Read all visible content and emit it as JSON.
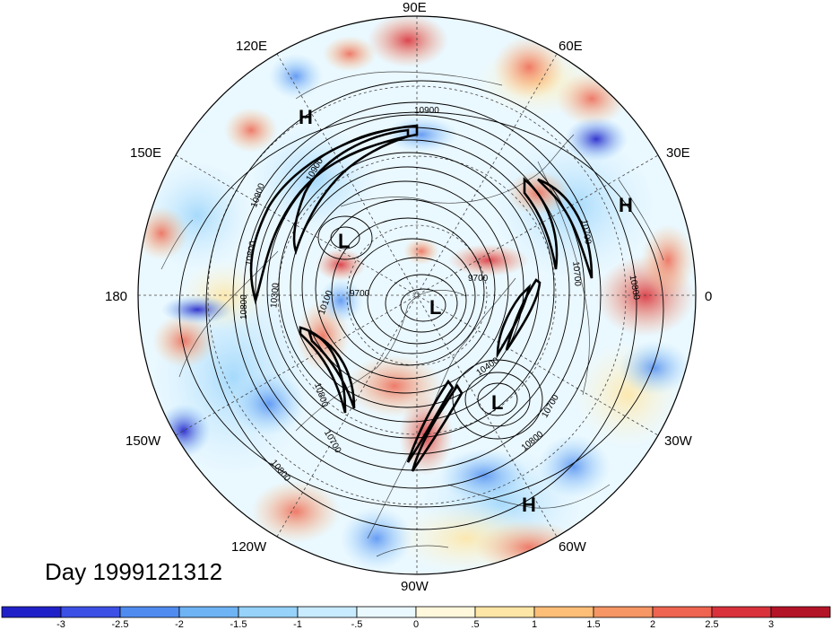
{
  "title": "Day 1999121312",
  "longitude_labels": [
    "90E",
    "60E",
    "30E",
    "0",
    "30W",
    "60W",
    "90W",
    "120W",
    "150W",
    "180",
    "150E",
    "120E"
  ],
  "pressure_systems": [
    {
      "label": "H",
      "region": "east-asia"
    },
    {
      "label": "H",
      "region": "europe"
    },
    {
      "label": "L",
      "region": "north-pacific"
    },
    {
      "label": "L",
      "region": "polar"
    },
    {
      "label": "L",
      "region": "north-atlantic"
    },
    {
      "label": "H",
      "region": "subtropical-atlantic"
    }
  ],
  "contour_labels": [
    "10900",
    "10900",
    "10900",
    "10800",
    "10800",
    "10800",
    "10800",
    "10700",
    "10700",
    "10700",
    "10800",
    "10700",
    "10400",
    "10100",
    "9700",
    "9700",
    "10300",
    "10800"
  ],
  "colorbar": {
    "tick_labels": [
      "-3",
      "-2.5",
      "-2",
      "-1.5",
      "-1",
      "-.5",
      "0",
      ".5",
      "1",
      "1.5",
      "2",
      "2.5",
      "3"
    ],
    "colors": [
      "#2020c8",
      "#3c50e6",
      "#508cf0",
      "#6eb4f5",
      "#96d2fa",
      "#c8ebff",
      "#eaf8ff",
      "#fff8dc",
      "#fee6a6",
      "#fdbe78",
      "#f59664",
      "#ee6450",
      "#d9323c",
      "#b41428"
    ]
  }
}
